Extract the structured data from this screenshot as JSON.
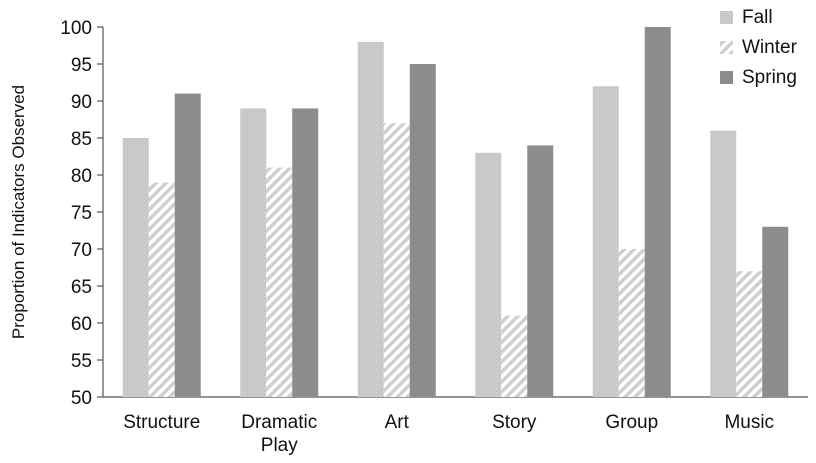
{
  "chart_data": {
    "type": "bar",
    "categories": [
      "Structure",
      "Dramatic Play",
      "Art",
      "Story",
      "Group",
      "Music"
    ],
    "series": [
      {
        "name": "Fall",
        "values": [
          85,
          89,
          98,
          83,
          92,
          86
        ],
        "color": "#c8c8c8",
        "pattern": "dotted"
      },
      {
        "name": "Winter",
        "values": [
          79,
          81,
          87,
          61,
          70,
          67
        ],
        "color": "#d9d9d9",
        "pattern": "diagonal-hatch"
      },
      {
        "name": "Spring",
        "values": [
          91,
          89,
          95,
          84,
          100,
          73
        ],
        "color": "#8c8c8c",
        "pattern": "solid"
      }
    ],
    "title": "",
    "xlabel": "",
    "ylabel": "Proportion of Indicators Observed",
    "ylim": [
      50,
      100
    ],
    "yticks": [
      50,
      55,
      60,
      65,
      70,
      75,
      80,
      85,
      90,
      95,
      100
    ],
    "grid": false,
    "legend_position": "top-right"
  }
}
